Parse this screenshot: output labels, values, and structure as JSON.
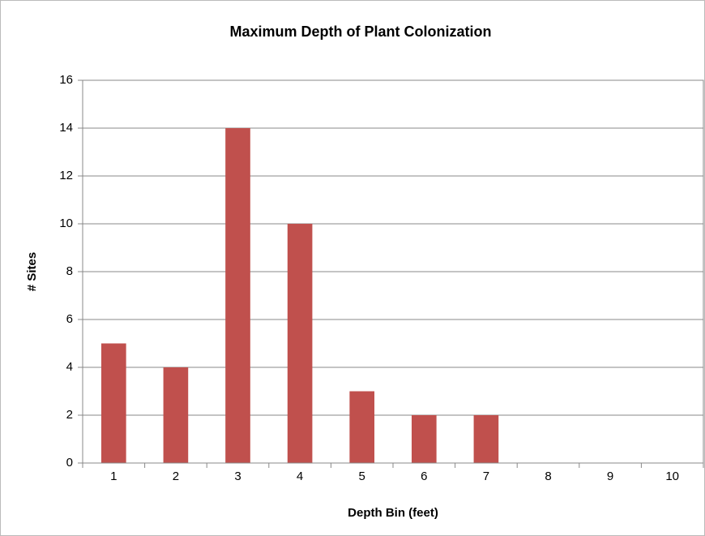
{
  "chart_data": {
    "type": "bar",
    "title": "Maximum Depth of Plant Colonization",
    "x_label": "Depth Bin (feet)",
    "y_label": "# Sites",
    "categories": [
      "1",
      "2",
      "3",
      "4",
      "5",
      "6",
      "7",
      "8",
      "9",
      "10"
    ],
    "values": [
      5,
      4,
      14,
      10,
      3,
      2,
      2,
      0,
      0,
      0
    ],
    "color": "#c0504d",
    "ylim": [
      0,
      16
    ],
    "yticks": [
      0,
      2,
      4,
      6,
      8,
      10,
      12,
      14,
      16
    ],
    "grid": true
  }
}
